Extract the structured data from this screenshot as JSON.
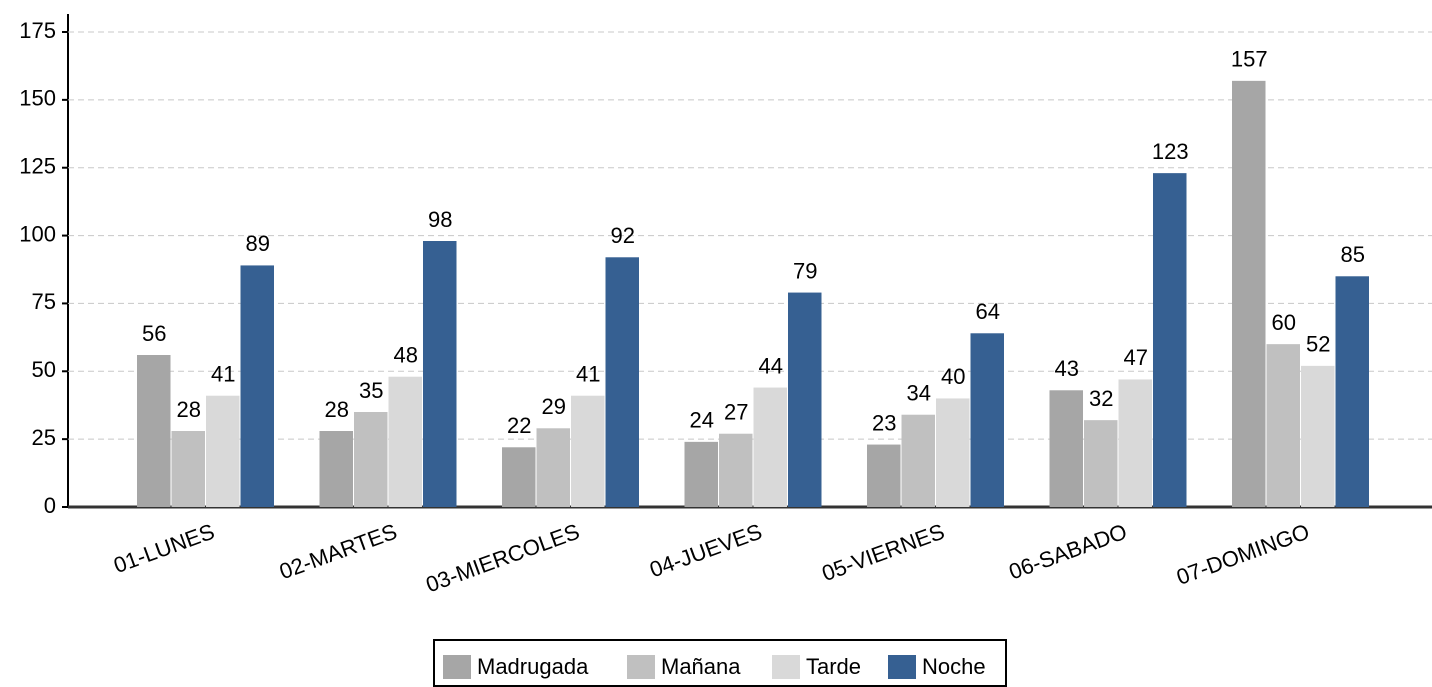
{
  "chart_data": {
    "type": "bar",
    "categories": [
      "01-LUNES",
      "02-MARTES",
      "03-MIERCOLES",
      "04-JUEVES",
      "05-VIERNES",
      "06-SABADO",
      "07-DOMINGO"
    ],
    "series": [
      {
        "name": "Madrugada",
        "color": "#a6a6a6",
        "values": [
          56,
          28,
          22,
          24,
          23,
          43,
          157
        ]
      },
      {
        "name": "Mañana",
        "color": "#c0c0c0",
        "values": [
          28,
          35,
          29,
          27,
          34,
          32,
          60
        ]
      },
      {
        "name": "Tarde",
        "color": "#d9d9d9",
        "values": [
          41,
          48,
          41,
          44,
          40,
          47,
          52
        ]
      },
      {
        "name": "Noche",
        "color": "#366092",
        "values": [
          89,
          98,
          92,
          79,
          64,
          123,
          85
        ]
      }
    ],
    "ylim": [
      0,
      175
    ],
    "yticks": [
      0,
      25,
      50,
      75,
      100,
      125,
      150,
      175
    ],
    "grid": true,
    "legend": "bottom"
  }
}
